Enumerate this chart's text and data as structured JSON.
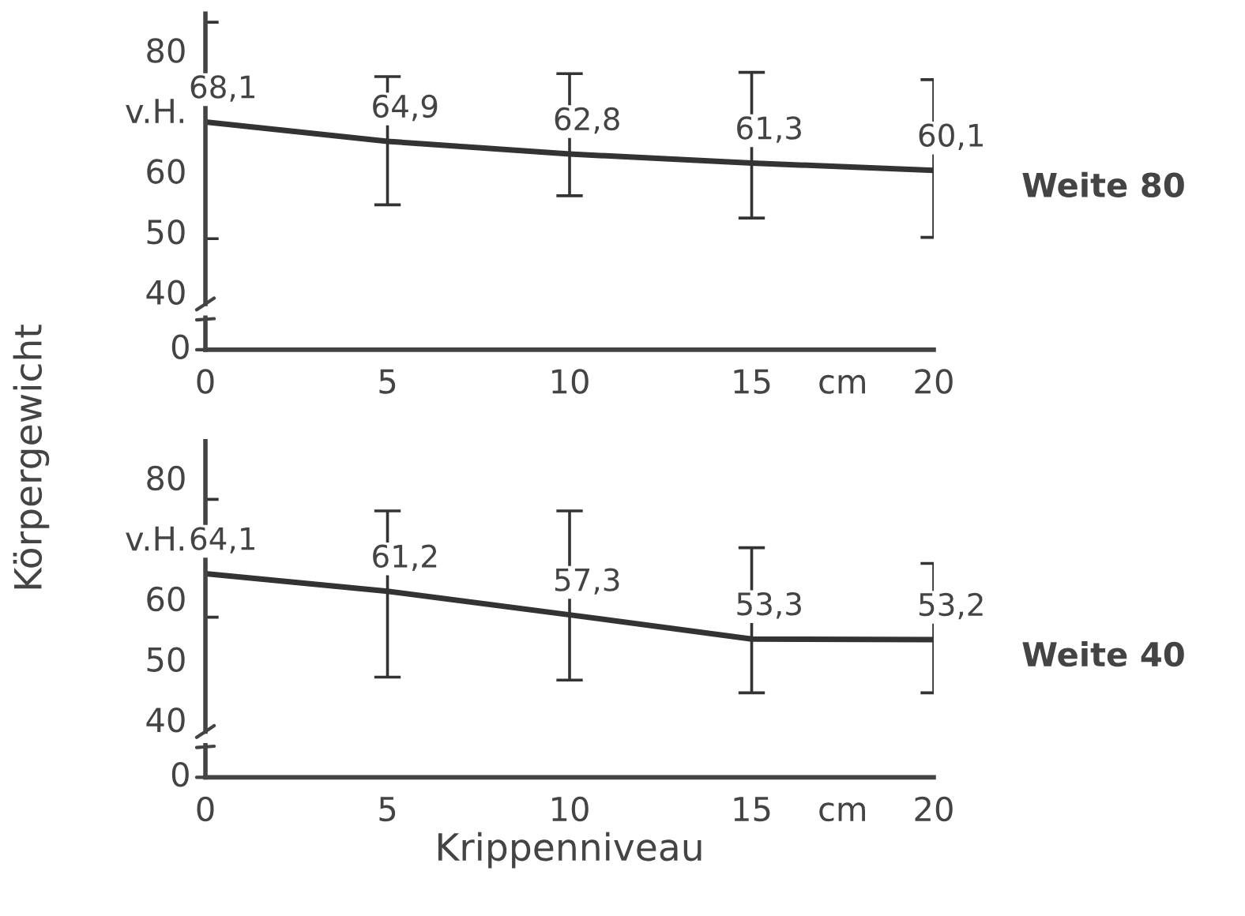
{
  "chart_data": [
    {
      "type": "line",
      "ylabel": "Körpergewicht",
      "x": [
        0,
        5,
        10,
        15,
        20
      ],
      "xlim": [
        0,
        20
      ],
      "xticks": [
        0,
        5,
        10,
        15,
        {
          "value": 17.5,
          "label": "cm"
        },
        20
      ],
      "ylim": [
        38,
        86
      ],
      "yticks": [
        40,
        50,
        60,
        {
          "value": 70,
          "label": "v.H."
        },
        80
      ],
      "annotations": [
        "0"
      ],
      "grid": false,
      "legend": false,
      "marker": "none",
      "line_style": "solid",
      "series": [
        {
          "name": "Weite 80",
          "color": "#333333",
          "values": [
            68.1,
            64.9,
            62.8,
            61.3,
            60.1
          ],
          "value_labels": [
            "68,1",
            "64,9",
            "62,8",
            "61,3",
            "60,1"
          ],
          "errors": [
            [
              48.8,
              84.6
            ],
            [
              54.4,
              75.6
            ],
            [
              55.9,
              76.1
            ],
            [
              52.2,
              76.3
            ],
            [
              49.0,
              75.1
            ]
          ]
        }
      ]
    },
    {
      "type": "line",
      "xlabel": "Krippenniveau",
      "x": [
        0,
        5,
        10,
        15,
        20
      ],
      "xlim": [
        0,
        20
      ],
      "xticks": [
        0,
        5,
        10,
        15,
        {
          "value": 17.5,
          "label": "cm"
        },
        20
      ],
      "ylim": [
        38,
        86
      ],
      "yticks": [
        40,
        50,
        60,
        {
          "value": 70,
          "label": "v.H."
        },
        80
      ],
      "annotations": [
        "0"
      ],
      "grid": false,
      "legend": false,
      "marker": "none",
      "line_style": "solid",
      "series": [
        {
          "name": "Weite 40",
          "color": "#333333",
          "values": [
            64.1,
            61.2,
            57.3,
            53.3,
            53.2
          ],
          "value_labels": [
            "64,1",
            "61,2",
            "57,3",
            "53,3",
            "53,2"
          ],
          "errors": [
            [
              56.9,
              76.4
            ],
            [
              47.0,
              74.5
            ],
            [
              46.5,
              74.5
            ],
            [
              44.4,
              68.4
            ],
            [
              44.4,
              65.8
            ]
          ]
        }
      ]
    }
  ]
}
